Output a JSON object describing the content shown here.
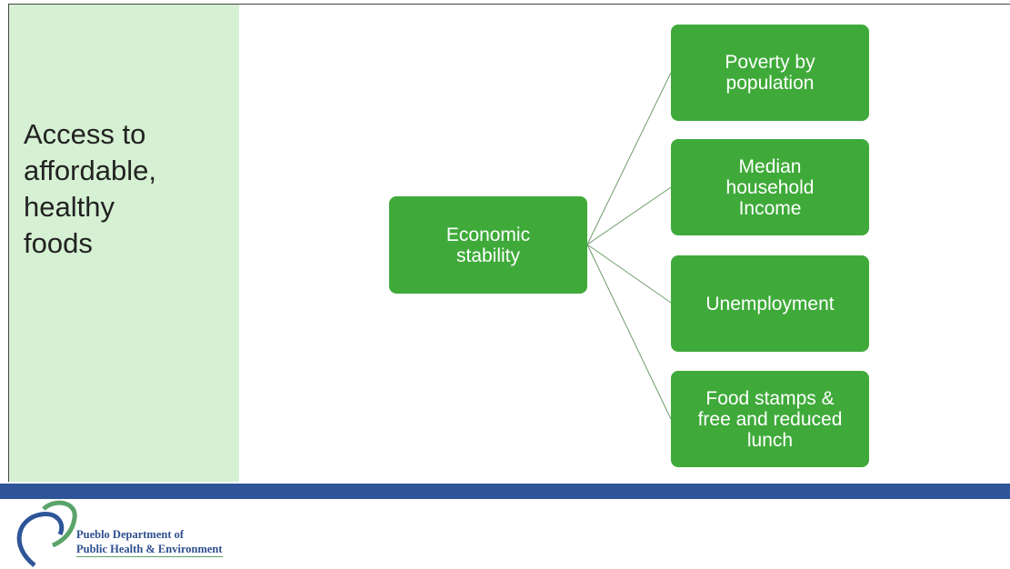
{
  "sidebar": {
    "title_lines": [
      "Access to",
      "affordable,",
      "healthy",
      "foods"
    ]
  },
  "diagram": {
    "root": {
      "lines": [
        "Economic",
        "stability"
      ]
    },
    "children": [
      {
        "lines": [
          "Poverty by",
          "population"
        ]
      },
      {
        "lines": [
          "Median",
          "household",
          "Income"
        ]
      },
      {
        "lines": [
          "Unemployment"
        ]
      },
      {
        "lines": [
          "Food stamps &",
          "free and reduced",
          "lunch"
        ]
      }
    ]
  },
  "footer": {
    "logo_lines": [
      "Pueblo Department of",
      "Public Health & Environment"
    ]
  }
}
